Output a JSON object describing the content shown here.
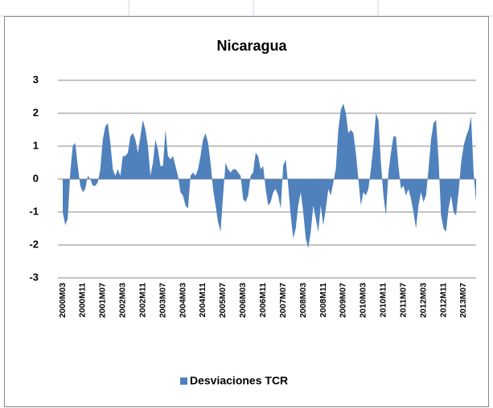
{
  "chart_data": {
    "type": "area",
    "title": "Nicaragua",
    "categories": [
      "2000M03",
      null,
      null,
      null,
      null,
      null,
      null,
      null,
      "2000M11",
      null,
      null,
      null,
      null,
      null,
      null,
      null,
      "2001M07",
      null,
      null,
      null,
      null,
      null,
      null,
      null,
      "2002M03",
      null,
      null,
      null,
      null,
      null,
      null,
      null,
      "2002M11",
      null,
      null,
      null,
      null,
      null,
      null,
      null,
      "2003M07",
      null,
      null,
      null,
      null,
      null,
      null,
      null,
      "2004M03",
      null,
      null,
      null,
      null,
      null,
      null,
      null,
      "2004M11",
      null,
      null,
      null,
      null,
      null,
      null,
      null,
      "2005M07",
      null,
      null,
      null,
      null,
      null,
      null,
      null,
      "2006M03",
      null,
      null,
      null,
      null,
      null,
      null,
      null,
      "2006M11",
      null,
      null,
      null,
      null,
      null,
      null,
      null,
      "2007M07",
      null,
      null,
      null,
      null,
      null,
      null,
      null,
      "2008M03",
      null,
      null,
      null,
      null,
      null,
      null,
      null,
      "2008M11",
      null,
      null,
      null,
      null,
      null,
      null,
      null,
      "2009M07",
      null,
      null,
      null,
      null,
      null,
      null,
      null,
      "2010M03",
      null,
      null,
      null,
      null,
      null,
      null,
      null,
      "2010M11",
      null,
      null,
      null,
      null,
      null,
      null,
      null,
      "2011M07",
      null,
      null,
      null,
      null,
      null,
      null,
      null,
      "2012M03",
      null,
      null,
      null,
      null,
      null,
      null,
      null,
      "2012M11",
      null,
      null,
      null,
      null,
      null,
      null,
      null,
      "2013M07",
      null,
      null,
      null,
      null,
      null
    ],
    "series": [
      {
        "name": "Desviaciones TCR",
        "color": "#4f81bd",
        "values": [
          -1.0,
          -1.4,
          -1.2,
          0.2,
          1.0,
          1.1,
          0.4,
          -0.2,
          -0.4,
          -0.3,
          0.1,
          0.0,
          -0.2,
          -0.2,
          -0.1,
          0.3,
          1.2,
          1.6,
          1.7,
          1.1,
          0.3,
          0.1,
          0.3,
          0.1,
          0.7,
          0.7,
          0.8,
          1.3,
          1.4,
          1.2,
          0.8,
          1.3,
          1.8,
          1.5,
          1.0,
          0.1,
          0.5,
          1.2,
          0.9,
          0.4,
          0.4,
          1.5,
          0.7,
          0.6,
          0.7,
          0.4,
          0.1,
          -0.4,
          -0.5,
          -0.8,
          -0.9,
          0.1,
          0.2,
          0.1,
          0.3,
          0.7,
          1.2,
          1.4,
          1.1,
          0.5,
          -0.3,
          -0.8,
          -1.3,
          -1.6,
          -0.5,
          0.5,
          0.3,
          0.2,
          0.3,
          0.3,
          0.2,
          0.1,
          -0.6,
          -0.7,
          -0.5,
          0.1,
          0.2,
          0.8,
          0.7,
          0.3,
          0.4,
          -0.3,
          -0.8,
          -0.7,
          -0.4,
          -0.3,
          -0.5,
          -0.9,
          0.4,
          0.6,
          -0.2,
          -1.1,
          -1.8,
          -1.5,
          -0.8,
          -0.4,
          -1.0,
          -1.8,
          -2.1,
          -1.6,
          -0.8,
          -1.2,
          -1.6,
          -0.8,
          -1.4,
          -0.9,
          -0.3,
          -0.5,
          -0.1,
          0.3,
          1.5,
          2.1,
          2.3,
          2.0,
          1.4,
          1.5,
          1.4,
          0.8,
          0.0,
          -0.8,
          -0.4,
          -0.5,
          -0.3,
          0.3,
          1.0,
          2.0,
          1.8,
          0.5,
          -0.5,
          -1.1,
          0.2,
          0.8,
          1.3,
          1.3,
          0.4,
          -0.3,
          -0.2,
          -0.5,
          -0.3,
          -0.6,
          -1.0,
          -1.5,
          -0.8,
          -0.4,
          -0.7,
          -0.5,
          0.3,
          1.2,
          1.7,
          1.8,
          0.6,
          -1.1,
          -1.5,
          -1.6,
          -0.9,
          -0.5,
          -1.0,
          -1.1,
          -0.4,
          0.5,
          1.0,
          1.3,
          1.5,
          1.9,
          0.2,
          -0.7
        ]
      }
    ],
    "ylim": [
      -3,
      3
    ],
    "yticks": [
      -3,
      -2,
      -1,
      0,
      1,
      2,
      3
    ],
    "grid": true,
    "legend": "bottom"
  }
}
